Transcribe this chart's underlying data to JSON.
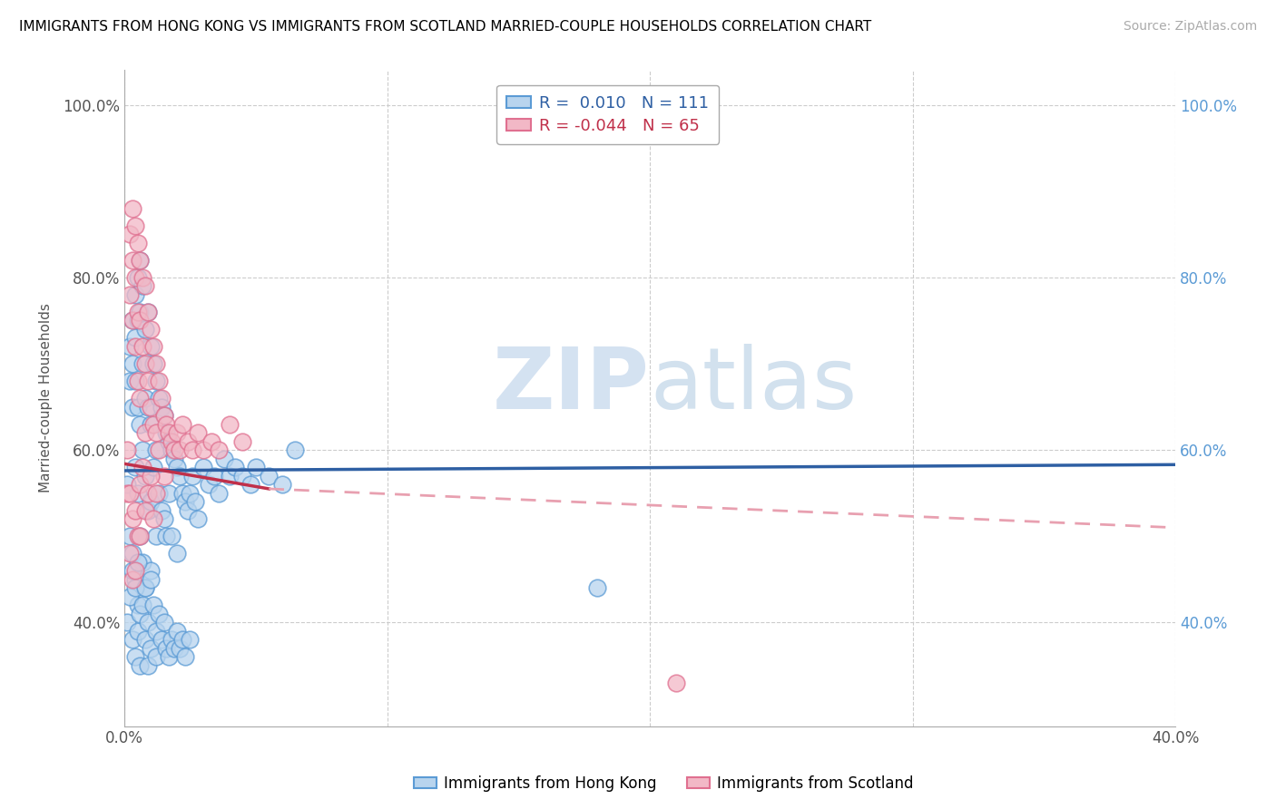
{
  "title": "IMMIGRANTS FROM HONG KONG VS IMMIGRANTS FROM SCOTLAND MARRIED-COUPLE HOUSEHOLDS CORRELATION CHART",
  "source": "Source: ZipAtlas.com",
  "ylabel": "Married-couple Households",
  "xlim": [
    0.0,
    0.4
  ],
  "ylim": [
    0.28,
    1.04
  ],
  "yticks": [
    0.4,
    0.6,
    0.8,
    1.0
  ],
  "ytick_labels": [
    "40.0%",
    "60.0%",
    "80.0%",
    "100.0%"
  ],
  "xticks": [
    0.0,
    0.1,
    0.2,
    0.3,
    0.4
  ],
  "xtick_labels": [
    "0.0%",
    "",
    "",
    "",
    "40.0%"
  ],
  "hk_color": "#b8d4ee",
  "hk_edge_color": "#5b9bd5",
  "sc_color": "#f2b8c6",
  "sc_edge_color": "#e07090",
  "hk_R": 0.01,
  "hk_N": 111,
  "sc_R": -0.044,
  "sc_N": 65,
  "hk_line_color": "#2e5fa3",
  "sc_line_color_solid": "#c0304a",
  "sc_line_color_dash": "#e8a0b0",
  "watermark_zip": "ZIP",
  "watermark_atlas": "atlas",
  "legend_label_hk": "Immigrants from Hong Kong",
  "legend_label_sc": "Immigrants from Scotland",
  "right_tick_color": "#5b9bd5",
  "left_tick_color": "#555555",
  "hk_x": [
    0.001,
    0.002,
    0.002,
    0.002,
    0.003,
    0.003,
    0.003,
    0.003,
    0.004,
    0.004,
    0.004,
    0.004,
    0.004,
    0.005,
    0.005,
    0.005,
    0.005,
    0.005,
    0.006,
    0.006,
    0.006,
    0.006,
    0.007,
    0.007,
    0.007,
    0.007,
    0.008,
    0.008,
    0.008,
    0.008,
    0.009,
    0.009,
    0.009,
    0.01,
    0.01,
    0.01,
    0.01,
    0.011,
    0.011,
    0.012,
    0.012,
    0.012,
    0.013,
    0.013,
    0.014,
    0.014,
    0.015,
    0.015,
    0.016,
    0.016,
    0.017,
    0.017,
    0.018,
    0.018,
    0.019,
    0.02,
    0.02,
    0.021,
    0.022,
    0.023,
    0.024,
    0.025,
    0.026,
    0.027,
    0.028,
    0.03,
    0.032,
    0.034,
    0.036,
    0.038,
    0.04,
    0.042,
    0.045,
    0.048,
    0.05,
    0.055,
    0.06,
    0.065,
    0.001,
    0.002,
    0.003,
    0.003,
    0.004,
    0.004,
    0.005,
    0.005,
    0.006,
    0.006,
    0.007,
    0.008,
    0.008,
    0.009,
    0.009,
    0.01,
    0.01,
    0.011,
    0.012,
    0.012,
    0.013,
    0.014,
    0.015,
    0.016,
    0.017,
    0.018,
    0.019,
    0.02,
    0.021,
    0.022,
    0.023,
    0.025,
    0.18
  ],
  "hk_y": [
    0.56,
    0.72,
    0.68,
    0.5,
    0.75,
    0.7,
    0.65,
    0.48,
    0.78,
    0.73,
    0.68,
    0.58,
    0.45,
    0.8,
    0.75,
    0.65,
    0.55,
    0.42,
    0.82,
    0.76,
    0.63,
    0.5,
    0.79,
    0.7,
    0.6,
    0.47,
    0.74,
    0.66,
    0.57,
    0.44,
    0.76,
    0.65,
    0.53,
    0.72,
    0.63,
    0.54,
    0.46,
    0.7,
    0.58,
    0.68,
    0.6,
    0.5,
    0.66,
    0.55,
    0.65,
    0.53,
    0.64,
    0.52,
    0.62,
    0.5,
    0.61,
    0.55,
    0.6,
    0.5,
    0.59,
    0.58,
    0.48,
    0.57,
    0.55,
    0.54,
    0.53,
    0.55,
    0.57,
    0.54,
    0.52,
    0.58,
    0.56,
    0.57,
    0.55,
    0.59,
    0.57,
    0.58,
    0.57,
    0.56,
    0.58,
    0.57,
    0.56,
    0.6,
    0.4,
    0.43,
    0.46,
    0.38,
    0.44,
    0.36,
    0.47,
    0.39,
    0.41,
    0.35,
    0.42,
    0.44,
    0.38,
    0.4,
    0.35,
    0.45,
    0.37,
    0.42,
    0.39,
    0.36,
    0.41,
    0.38,
    0.4,
    0.37,
    0.36,
    0.38,
    0.37,
    0.39,
    0.37,
    0.38,
    0.36,
    0.38,
    0.44
  ],
  "sc_x": [
    0.001,
    0.002,
    0.002,
    0.003,
    0.003,
    0.003,
    0.004,
    0.004,
    0.004,
    0.005,
    0.005,
    0.005,
    0.006,
    0.006,
    0.006,
    0.007,
    0.007,
    0.008,
    0.008,
    0.008,
    0.009,
    0.009,
    0.01,
    0.01,
    0.011,
    0.011,
    0.012,
    0.012,
    0.013,
    0.013,
    0.014,
    0.015,
    0.015,
    0.016,
    0.017,
    0.018,
    0.019,
    0.02,
    0.021,
    0.022,
    0.024,
    0.026,
    0.028,
    0.03,
    0.033,
    0.036,
    0.04,
    0.045,
    0.001,
    0.002,
    0.002,
    0.003,
    0.003,
    0.004,
    0.004,
    0.005,
    0.006,
    0.006,
    0.007,
    0.008,
    0.009,
    0.01,
    0.011,
    0.012,
    0.21
  ],
  "sc_y": [
    0.6,
    0.85,
    0.78,
    0.88,
    0.82,
    0.75,
    0.86,
    0.8,
    0.72,
    0.84,
    0.76,
    0.68,
    0.82,
    0.75,
    0.66,
    0.8,
    0.72,
    0.79,
    0.7,
    0.62,
    0.76,
    0.68,
    0.74,
    0.65,
    0.72,
    0.63,
    0.7,
    0.62,
    0.68,
    0.6,
    0.66,
    0.64,
    0.57,
    0.63,
    0.62,
    0.61,
    0.6,
    0.62,
    0.6,
    0.63,
    0.61,
    0.6,
    0.62,
    0.6,
    0.61,
    0.6,
    0.63,
    0.61,
    0.55,
    0.55,
    0.48,
    0.52,
    0.45,
    0.53,
    0.46,
    0.5,
    0.56,
    0.5,
    0.58,
    0.53,
    0.55,
    0.57,
    0.52,
    0.55,
    0.33
  ]
}
